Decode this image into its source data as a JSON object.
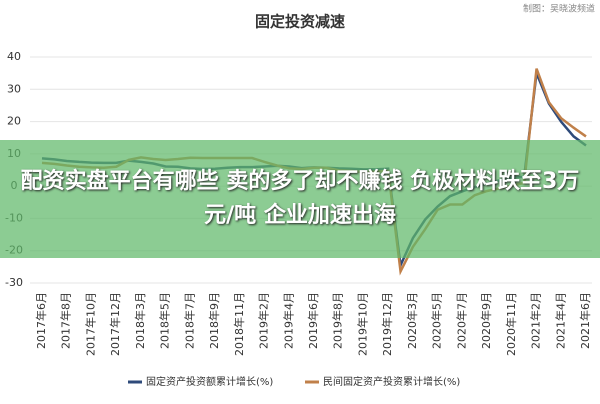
{
  "chart_data": {
    "type": "line",
    "title": "固定投资减速",
    "source": "制图：吴晓波频道",
    "categories": [
      "2017年6月",
      null,
      "2017年8月",
      null,
      "2017年10月",
      null,
      "2017年12月",
      null,
      "2018年3月",
      null,
      "2018年5月",
      null,
      "2018年7月",
      null,
      "2018年9月",
      null,
      "2018年11月",
      null,
      "2019年2月",
      null,
      "2019年4月",
      null,
      "2019年6月",
      null,
      "2019年8月",
      null,
      "2019年10月",
      null,
      "2019年12月",
      null,
      "2020年3月",
      null,
      "2020年5月",
      null,
      "2020年7月",
      null,
      "2020年9月",
      null,
      "2020年11月",
      null,
      "2021年2月",
      null,
      "2021年4月",
      null,
      "2021年6月"
    ],
    "series": [
      {
        "name": "固定资产投资额累计增长(%)",
        "color": "#2e4a7a",
        "values": [
          8.6,
          8.3,
          7.8,
          7.5,
          7.3,
          7.2,
          7.2,
          7.9,
          7.5,
          7.0,
          6.1,
          6.0,
          5.5,
          5.3,
          5.4,
          5.7,
          5.9,
          5.9,
          6.1,
          6.3,
          6.1,
          5.6,
          5.8,
          5.7,
          5.5,
          5.4,
          5.2,
          5.2,
          5.4,
          -24.5,
          -16.1,
          -10.3,
          -6.3,
          -3.1,
          -1.6,
          -0.3,
          0.8,
          1.8,
          2.6,
          2.9,
          35.0,
          25.6,
          19.9,
          15.4,
          12.6
        ]
      },
      {
        "name": "民间固定资产投资累计增长(%)",
        "color": "#c0804a",
        "values": [
          7.2,
          6.9,
          6.4,
          6.0,
          5.8,
          5.7,
          6.0,
          8.1,
          8.9,
          8.4,
          8.1,
          8.4,
          8.8,
          8.7,
          8.7,
          8.7,
          8.7,
          8.7,
          7.5,
          6.4,
          5.5,
          5.3,
          5.7,
          5.7,
          4.9,
          4.7,
          4.4,
          4.5,
          4.7,
          -26.4,
          -18.8,
          -13.3,
          -7.3,
          -5.7,
          -5.7,
          -2.8,
          -1.5,
          -0.7,
          0.2,
          1.0,
          36.4,
          26.0,
          21.0,
          18.1,
          15.4
        ]
      }
    ],
    "ylim": [
      -30,
      40
    ],
    "yticks": [
      -30,
      -20,
      -10,
      0,
      10,
      20,
      30,
      40
    ],
    "grid": true
  },
  "overlay_text": "配资实盘平台有哪些 卖的多了却不赚钱 负极材料跌至3万元/吨 企业加速出海"
}
